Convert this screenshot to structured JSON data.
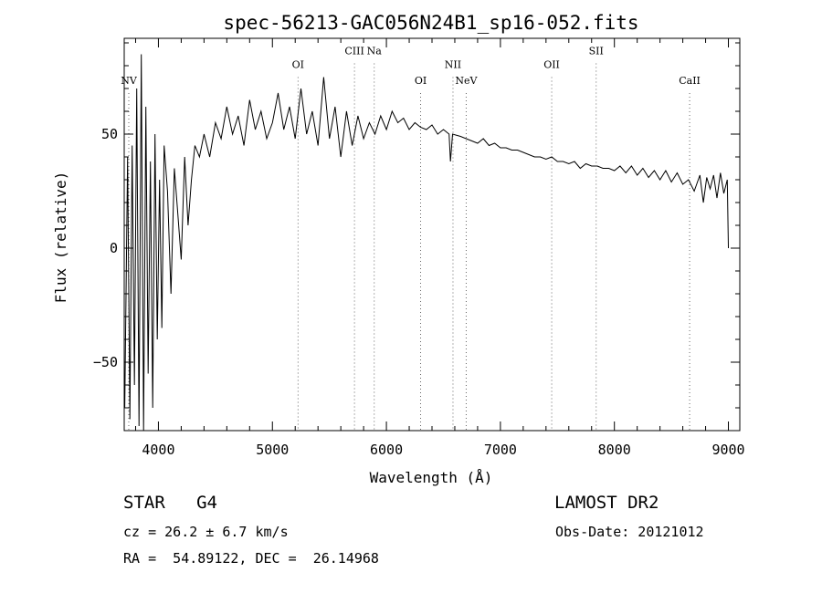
{
  "chart_data": {
    "type": "line",
    "title": "spec-56213-GAC056N24B1_sp16-052.fits",
    "xlabel": "Wavelength (Å)",
    "ylabel": "Flux (relative)",
    "xlim": [
      3700,
      9100
    ],
    "ylim": [
      -80,
      92
    ],
    "xticks": [
      4000,
      5000,
      6000,
      7000,
      8000,
      9000
    ],
    "yticks": [
      -50,
      0,
      50
    ],
    "grid": false,
    "series": [
      {
        "x": [
          3705,
          3730,
          3750,
          3770,
          3790,
          3810,
          3830,
          3850,
          3870,
          3890,
          3910,
          3930,
          3950,
          3970,
          3990,
          4010,
          4030,
          4050,
          4080,
          4110,
          4140,
          4170,
          4200,
          4230,
          4260,
          4290,
          4320,
          4360,
          4400,
          4450,
          4500,
          4550,
          4600,
          4650,
          4700,
          4750,
          4800,
          4850,
          4900,
          4950,
          5000,
          5050,
          5100,
          5150,
          5200,
          5250,
          5300,
          5350,
          5400,
          5450,
          5500,
          5550,
          5600,
          5650,
          5700,
          5750,
          5800,
          5850,
          5900,
          5950,
          6000,
          6050,
          6100,
          6150,
          6200,
          6250,
          6300,
          6350,
          6400,
          6450,
          6500,
          6550,
          6562,
          6580,
          6650,
          6700,
          6750,
          6800,
          6850,
          6900,
          6950,
          7000,
          7050,
          7100,
          7150,
          7200,
          7250,
          7300,
          7350,
          7400,
          7450,
          7500,
          7550,
          7600,
          7650,
          7700,
          7750,
          7800,
          7850,
          7900,
          7950,
          8000,
          8050,
          8100,
          8150,
          8200,
          8250,
          8300,
          8350,
          8400,
          8450,
          8500,
          8550,
          8600,
          8650,
          8700,
          8750,
          8780,
          8810,
          8840,
          8870,
          8900,
          8930,
          8960,
          8990,
          9000
        ],
        "y": [
          -70,
          40,
          -75,
          45,
          -60,
          70,
          -78,
          85,
          -80,
          62,
          -55,
          38,
          -70,
          50,
          -40,
          30,
          -35,
          45,
          25,
          -20,
          35,
          15,
          -5,
          40,
          10,
          30,
          45,
          40,
          50,
          40,
          55,
          48,
          62,
          50,
          58,
          45,
          65,
          52,
          60,
          48,
          55,
          68,
          52,
          62,
          48,
          70,
          50,
          60,
          45,
          75,
          48,
          62,
          40,
          60,
          45,
          58,
          48,
          55,
          50,
          58,
          52,
          60,
          55,
          57,
          52,
          55,
          53,
          52,
          54,
          50,
          52,
          50,
          38,
          50,
          49,
          48,
          47,
          46,
          48,
          45,
          46,
          44,
          44,
          43,
          43,
          42,
          41,
          40,
          40,
          39,
          40,
          38,
          38,
          37,
          38,
          35,
          37,
          36,
          36,
          35,
          35,
          34,
          36,
          33,
          36,
          32,
          35,
          31,
          34,
          30,
          34,
          29,
          33,
          28,
          30,
          25,
          32,
          20,
          31,
          26,
          32,
          22,
          33,
          24,
          30,
          0
        ]
      }
    ],
    "lines": [
      {
        "label": "NV",
        "x": 3740,
        "label_y": 72
      },
      {
        "label": "OI",
        "x": 5225,
        "label_y": 79
      },
      {
        "label": "CIII",
        "x": 5720,
        "label_y": 85
      },
      {
        "label": "Na",
        "x": 5893,
        "label_y": 85
      },
      {
        "label": "OI",
        "x": 6300,
        "label_y": 72
      },
      {
        "label": "NII",
        "x": 6584,
        "label_y": 79
      },
      {
        "label": "NeV",
        "x": 6700,
        "label_y": 72
      },
      {
        "label": "OII",
        "x": 7450,
        "label_y": 79
      },
      {
        "label": "SII",
        "x": 7840,
        "label_y": 85
      },
      {
        "label": "CaII",
        "x": 8660,
        "label_y": 72
      }
    ]
  },
  "footer": {
    "object": "STAR   G4",
    "survey": "LAMOST DR2",
    "cz": "cz = 26.2 ± 6.7 km/s",
    "obs_date": "Obs-Date: 20121012",
    "coords": "RA =  54.89122, DEC =  26.14968"
  }
}
